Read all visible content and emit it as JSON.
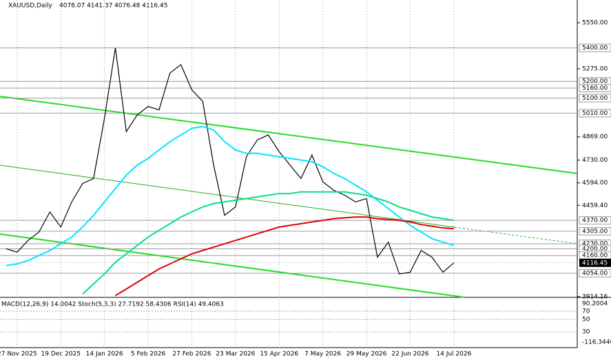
{
  "header": {
    "symbol": "XAUUSD,Daily",
    "ohlc": "4078.07 4141.37 4076.48 4116.45"
  },
  "chart_data": {
    "type": "line",
    "categories": [
      null,
      "27 Nov 2025",
      null,
      null,
      null,
      "19 Dec 2025",
      null,
      null,
      null,
      "14 Jan 2026",
      null,
      null,
      null,
      "5 Feb 2026",
      null,
      null,
      null,
      "27 Feb 2026",
      null,
      null,
      null,
      "23 Mar 2026",
      null,
      null,
      null,
      "15 Apr 2026",
      null,
      null,
      null,
      "7 May 2026",
      null,
      null,
      null,
      "29 May 2026",
      null,
      null,
      null,
      "22 Jun 2026",
      null,
      null,
      null,
      "14 Jul 2026"
    ],
    "series": [
      {
        "color": "#000000",
        "values": [
          4200,
          4180,
          4250,
          4300,
          4420,
          4330,
          4480,
          4590,
          4620,
          4980,
          5400,
          4900,
          5000,
          5050,
          5030,
          5250,
          5300,
          5150,
          5080,
          4700,
          4400,
          4450,
          4750,
          4850,
          4880,
          4780,
          4700,
          4620,
          4760,
          4600,
          4550,
          4520,
          4480,
          4500,
          4150,
          4240,
          4050,
          4060,
          4190,
          4150,
          4060,
          4116.45
        ]
      },
      {
        "color": "#00e5ff",
        "values": [
          4100,
          4110,
          4130,
          4160,
          4190,
          4230,
          4270,
          4330,
          4400,
          4480,
          4560,
          4640,
          4700,
          4740,
          4790,
          4840,
          4880,
          4920,
          4930,
          4910,
          4840,
          4790,
          4770,
          4770,
          4760,
          4750,
          4740,
          4730,
          4720,
          4690,
          4650,
          4620,
          4580,
          4540,
          4490,
          4440,
          4390,
          4340,
          4300,
          4260,
          4240,
          4220
        ]
      },
      {
        "color": "#00e08a",
        "values": [
          null,
          null,
          null,
          null,
          null,
          null,
          null,
          3930,
          3990,
          4050,
          4120,
          4170,
          4220,
          4270,
          4310,
          4350,
          4390,
          4420,
          4450,
          4470,
          4480,
          4490,
          4500,
          4510,
          4520,
          4530,
          4530,
          4540,
          4540,
          4540,
          4540,
          4540,
          4530,
          4520,
          4500,
          4480,
          4450,
          4430,
          4410,
          4390,
          4380,
          4370
        ]
      },
      {
        "color": "#e00000",
        "values": [
          null,
          null,
          null,
          null,
          null,
          null,
          null,
          null,
          null,
          null,
          3920,
          3960,
          4000,
          4040,
          4080,
          4110,
          4140,
          4170,
          4190,
          4210,
          4230,
          4250,
          4270,
          4290,
          4310,
          4330,
          4340,
          4350,
          4360,
          4370,
          4380,
          4385,
          4390,
          4390,
          4380,
          4375,
          4370,
          4360,
          4345,
          4335,
          4325,
          4320
        ]
      }
    ],
    "ylim": [
      3910,
      5686
    ],
    "yticks": [
      {
        "value": 5550,
        "label": "5550.00"
      },
      {
        "value": 5275,
        "label": "5275.00"
      },
      {
        "value": 4869,
        "label": "4869.00"
      },
      {
        "value": 4730,
        "label": "4730.00"
      },
      {
        "value": 4594,
        "label": "4594.00"
      },
      {
        "value": 4459.4,
        "label": "4459.40"
      },
      {
        "value": 3914.16,
        "label": "3914.16"
      }
    ],
    "levels": [
      {
        "value": 5400,
        "label": "5400.00"
      },
      {
        "value": 5200,
        "label": "5200.00"
      },
      {
        "value": 5160,
        "label": "5160.00"
      },
      {
        "value": 5100,
        "label": "5100.00"
      },
      {
        "value": 5010,
        "label": "5010.00"
      },
      {
        "value": 4370,
        "label": "4370.00"
      },
      {
        "value": 4305,
        "label": "4305.00"
      },
      {
        "value": 4230,
        "label": "4230.00"
      },
      {
        "value": 4200,
        "label": "4200.00"
      },
      {
        "value": 4160,
        "label": "4160.00"
      },
      {
        "value": 4054,
        "label": "4054.00"
      }
    ],
    "last": {
      "value": 4116.45,
      "label": "4116.45"
    },
    "grid": true
  },
  "indicator": {
    "label": "MACD(12,26,9) 14.0042 Stoch(5,3,3) 27.7192 58.4306 RSI(14) 49.4063",
    "ticks": [
      "90.2004",
      "70",
      "50",
      "30",
      "-116.3446"
    ]
  }
}
